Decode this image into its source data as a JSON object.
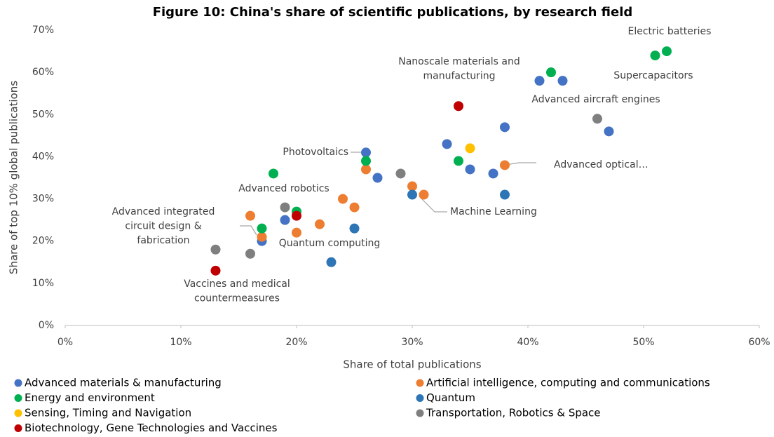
{
  "chart_data": {
    "type": "scatter",
    "title": "Figure 10: China's share of scientific publications, by research field",
    "x_label": "Share of total publications",
    "y_label": "Share of top 10% global publications",
    "xlim": [
      0,
      60
    ],
    "ylim": [
      0,
      70
    ],
    "xticks": [
      {
        "value": 0,
        "label": "0%"
      },
      {
        "value": 10,
        "label": "10%"
      },
      {
        "value": 20,
        "label": "20%"
      },
      {
        "value": 30,
        "label": "30%"
      },
      {
        "value": 40,
        "label": "40%"
      },
      {
        "value": 50,
        "label": "50%"
      },
      {
        "value": 60,
        "label": "60%"
      }
    ],
    "yticks": [
      {
        "value": 0,
        "label": "0%"
      },
      {
        "value": 10,
        "label": "10%"
      },
      {
        "value": 20,
        "label": "20%"
      },
      {
        "value": 30,
        "label": "30%"
      },
      {
        "value": 40,
        "label": "40%"
      },
      {
        "value": 50,
        "label": "50%"
      },
      {
        "value": 60,
        "label": "60%"
      },
      {
        "value": 70,
        "label": "70%"
      }
    ],
    "grid": false,
    "legend": "bottom",
    "series": [
      {
        "name": "Advanced materials & manufacturing",
        "color": "#4472c4",
        "x": [
          41,
          43,
          47,
          38,
          33,
          26,
          35,
          27,
          37,
          19,
          17
        ],
        "values": [
          58,
          58,
          46,
          47,
          43,
          41,
          37,
          35,
          36,
          25,
          20
        ]
      },
      {
        "name": "Artificial intelligence, computing and communications",
        "color": "#ed7d31",
        "x": [
          38,
          26,
          30,
          31,
          24,
          25,
          16,
          22,
          20,
          17
        ],
        "values": [
          38,
          37,
          33,
          31,
          30,
          28,
          26,
          24,
          22,
          21
        ]
      },
      {
        "name": "Energy and environment",
        "color": "#00b050",
        "x": [
          52,
          51,
          42,
          34,
          26,
          18,
          20,
          17
        ],
        "values": [
          65,
          64,
          60,
          39,
          39,
          36,
          27,
          23
        ]
      },
      {
        "name": "Quantum",
        "color": "#2e75b6",
        "x": [
          38,
          30,
          25,
          23
        ],
        "values": [
          31,
          31,
          23,
          15
        ]
      },
      {
        "name": "Sensing, Timing and Navigation",
        "color": "#ffc000",
        "x": [
          35
        ],
        "values": [
          42
        ]
      },
      {
        "name": "Transportation, Robotics & Space",
        "color": "#7f7f7f",
        "x": [
          46,
          29,
          19,
          13,
          16
        ],
        "values": [
          49,
          36,
          28,
          18,
          17
        ]
      },
      {
        "name": "Biotechnology, Gene Technologies and Vaccines",
        "color": "#c00000",
        "x": [
          34,
          20,
          13
        ],
        "values": [
          52,
          26,
          13
        ]
      }
    ],
    "annotations": [
      {
        "lines": [
          "Electric batteries"
        ]
      },
      {
        "lines": [
          "Nanoscale materials and",
          "manufacturing"
        ]
      },
      {
        "lines": [
          "Supercapacitors"
        ]
      },
      {
        "lines": [
          "Advanced aircraft engines"
        ]
      },
      {
        "lines": [
          "Photovoltaics"
        ]
      },
      {
        "lines": [
          "Advanced optical…"
        ]
      },
      {
        "lines": [
          "Advanced robotics"
        ]
      },
      {
        "lines": [
          "Machine Learning"
        ]
      },
      {
        "lines": [
          "Advanced integrated",
          "circuit design &",
          "fabrication"
        ]
      },
      {
        "lines": [
          "Quantum computing"
        ]
      },
      {
        "lines": [
          "Vaccines and medical",
          "countermeasures"
        ]
      }
    ]
  }
}
